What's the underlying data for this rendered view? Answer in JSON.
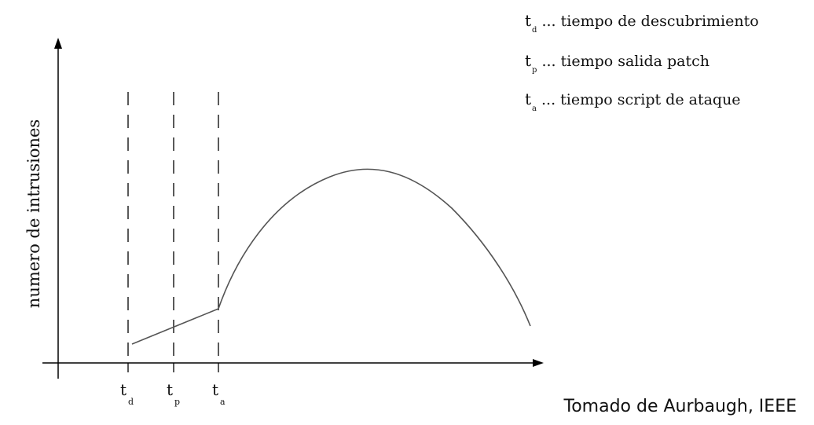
{
  "chart_data": {
    "type": "line",
    "ylabel": "numero de intrusiones",
    "xlabel": "",
    "markers": [
      {
        "sym": "t",
        "sub": "d"
      },
      {
        "sym": "t",
        "sub": "p"
      },
      {
        "sym": "t",
        "sub": "a"
      }
    ],
    "legend": [
      {
        "sym": "t",
        "sub": "d",
        "text": "... tiempo de descubrimiento"
      },
      {
        "sym": "t",
        "sub": "p",
        "text": "... tiempo salida patch"
      },
      {
        "sym": "t",
        "sub": "a",
        "text": "... tiempo script de ataque"
      }
    ],
    "curve_color": "#555555",
    "axis_color": "#000000"
  },
  "credit": "Tomado de Aurbaugh, IEEE"
}
